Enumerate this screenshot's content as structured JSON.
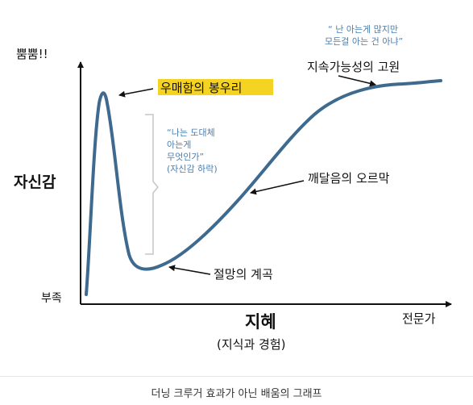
{
  "diagram": {
    "y_axis": {
      "top_label": "뿜뿜!!",
      "bottom_label": "부족",
      "title": "자신감"
    },
    "x_axis": {
      "title": "지혜",
      "subtitle": "(지식과 경험)",
      "right_label": "전문가"
    },
    "stages": {
      "peak": "우매함의 봉우리",
      "valley": "절망의 계곡",
      "slope": "깨달음의 오르막",
      "plateau": "지속가능성의 고원"
    },
    "quotes": {
      "peak_lines": [
        "“나는 도대체",
        "아는게",
        "무엇인가”",
        "(자신감 하락)"
      ],
      "plateau_lines": [
        "“ 난 아는게 많지만",
        "모든걸 아는 건 아냐”"
      ]
    },
    "colors": {
      "curve": "#3d6a8e",
      "quote_text": "#4a7eb0",
      "highlight": "#f5d322",
      "bracket": "#c6c6c6",
      "axis": "#111111"
    }
  },
  "caption": "더닝 크루거 효과가 아닌 배움의 그래프"
}
